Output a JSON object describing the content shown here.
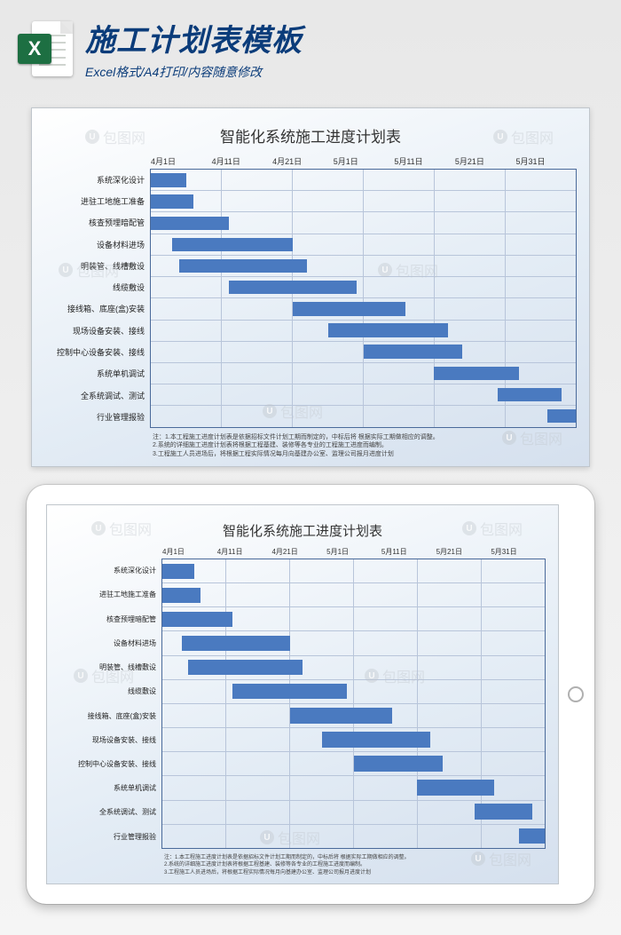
{
  "header": {
    "title": "施工计划表模板",
    "subtitle": "Excel格式/A4打印/内容随意修改",
    "icon_letter": "X"
  },
  "watermark": {
    "text": "包图网"
  },
  "chart": {
    "type": "gantt",
    "title": "智能化系统施工进度计划表",
    "bar_color": "#4a7ac0",
    "grid_color": "#b8c5da",
    "border_color": "#4a6a9a",
    "background_gradient": [
      "#ffffff",
      "#d5e0ee"
    ],
    "title_fontsize": 17,
    "label_fontsize": 9,
    "x_axis": {
      "labels": [
        "4月1日",
        "4月11日",
        "4月21日",
        "5月1日",
        "5月11日",
        "5月21日",
        "5月31日"
      ],
      "range_days": 60
    },
    "tasks": [
      {
        "name": "系统深化设计",
        "start": 0,
        "duration": 5
      },
      {
        "name": "进驻工地施工准备",
        "start": 0,
        "duration": 6
      },
      {
        "name": "核查预埋暗配管",
        "start": 0,
        "duration": 11
      },
      {
        "name": "设备材料进场",
        "start": 3,
        "duration": 17
      },
      {
        "name": "明装管、线槽敷设",
        "start": 4,
        "duration": 18
      },
      {
        "name": "线缆敷设",
        "start": 11,
        "duration": 18
      },
      {
        "name": "接线箱、底座(盒)安装",
        "start": 20,
        "duration": 16
      },
      {
        "name": "现场设备安装、接线",
        "start": 25,
        "duration": 17
      },
      {
        "name": "控制中心设备安装、接线",
        "start": 30,
        "duration": 14
      },
      {
        "name": "系统单机调试",
        "start": 40,
        "duration": 12
      },
      {
        "name": "全系统调试、测试",
        "start": 49,
        "duration": 9
      },
      {
        "name": "行业管理报验",
        "start": 56,
        "duration": 4
      }
    ],
    "notes": [
      "注：1.本工程施工进度计划表是依据招标文件计划工期而制定的，中标后将    根据实际工期做相应的调整。",
      "2.系统的详细施工进度计划表将根据工程基建、装修等各专业的工程施工进度而编制。",
      "3.工程施工人员进场后，将根据工程实际情况每月向基建办公室、监理公司报月进度计划"
    ]
  }
}
